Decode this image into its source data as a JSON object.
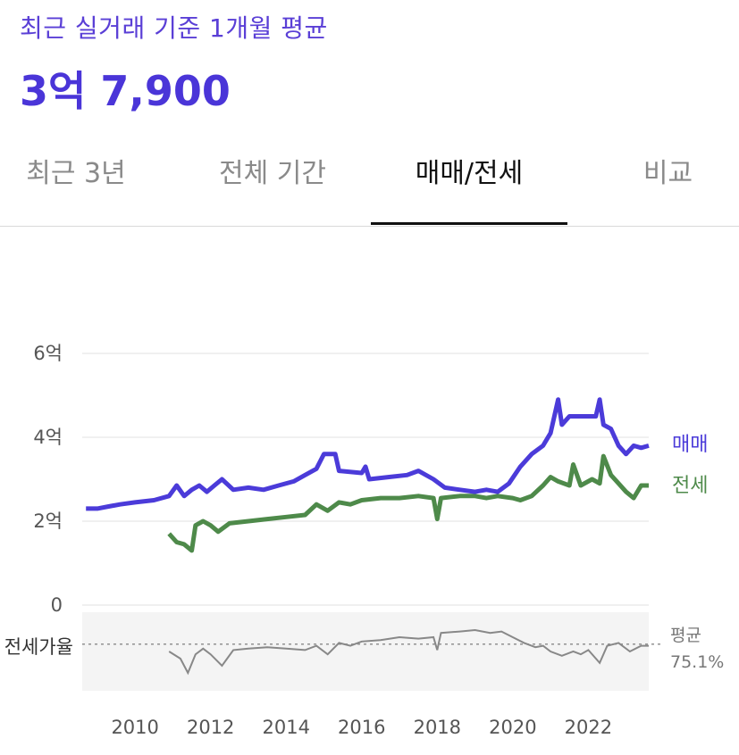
{
  "header": {
    "subtitle": "최근 실거래 기준 1개월 평균",
    "price": "3억 7,900"
  },
  "tabs": [
    {
      "label": "최근 3년",
      "active": false
    },
    {
      "label": "전체 기간",
      "active": false
    },
    {
      "label": "매매/전세",
      "active": true
    },
    {
      "label": "비교",
      "active": false
    }
  ],
  "colors": {
    "sale": "#4b3bd9",
    "jeonse": "#4e8a4a",
    "ratio": "#888888"
  },
  "chart_data": {
    "type": "line",
    "y_unit_label": "억",
    "ylim": [
      0,
      6
    ],
    "y_ticks": [
      {
        "value": 0,
        "label": "0"
      },
      {
        "value": 2,
        "label": "2억"
      },
      {
        "value": 4,
        "label": "4억"
      },
      {
        "value": 6,
        "label": "6억"
      }
    ],
    "x_ticks": [
      "2010",
      "2012",
      "2014",
      "2016",
      "2018",
      "2020",
      "2022"
    ],
    "xlim": [
      2008.6,
      2023.6
    ],
    "series": [
      {
        "name": "매매",
        "points": [
          [
            2008.7,
            2.3
          ],
          [
            2009.0,
            2.3
          ],
          [
            2009.3,
            2.35
          ],
          [
            2009.6,
            2.4
          ],
          [
            2010.0,
            2.45
          ],
          [
            2010.5,
            2.5
          ],
          [
            2010.9,
            2.6
          ],
          [
            2011.1,
            2.85
          ],
          [
            2011.3,
            2.6
          ],
          [
            2011.5,
            2.75
          ],
          [
            2011.7,
            2.85
          ],
          [
            2011.9,
            2.7
          ],
          [
            2012.1,
            2.85
          ],
          [
            2012.3,
            3.0
          ],
          [
            2012.6,
            2.75
          ],
          [
            2013.0,
            2.8
          ],
          [
            2013.4,
            2.75
          ],
          [
            2013.8,
            2.85
          ],
          [
            2014.2,
            2.95
          ],
          [
            2014.5,
            3.1
          ],
          [
            2014.8,
            3.25
          ],
          [
            2015.0,
            3.6
          ],
          [
            2015.3,
            3.6
          ],
          [
            2015.4,
            3.2
          ],
          [
            2016.0,
            3.15
          ],
          [
            2016.1,
            3.3
          ],
          [
            2016.2,
            3.0
          ],
          [
            2016.7,
            3.05
          ],
          [
            2017.2,
            3.1
          ],
          [
            2017.5,
            3.2
          ],
          [
            2017.9,
            3.0
          ],
          [
            2018.2,
            2.8
          ],
          [
            2018.6,
            2.75
          ],
          [
            2019.0,
            2.7
          ],
          [
            2019.3,
            2.75
          ],
          [
            2019.6,
            2.7
          ],
          [
            2019.9,
            2.9
          ],
          [
            2020.2,
            3.3
          ],
          [
            2020.5,
            3.6
          ],
          [
            2020.8,
            3.8
          ],
          [
            2021.0,
            4.1
          ],
          [
            2021.2,
            4.9
          ],
          [
            2021.3,
            4.3
          ],
          [
            2021.5,
            4.5
          ],
          [
            2021.8,
            4.5
          ],
          [
            2022.2,
            4.5
          ],
          [
            2022.3,
            4.9
          ],
          [
            2022.4,
            4.3
          ],
          [
            2022.6,
            4.2
          ],
          [
            2022.8,
            3.8
          ],
          [
            2023.0,
            3.6
          ],
          [
            2023.2,
            3.8
          ],
          [
            2023.4,
            3.75
          ],
          [
            2023.6,
            3.8
          ]
        ]
      },
      {
        "name": "전세",
        "points": [
          [
            2010.9,
            1.7
          ],
          [
            2011.1,
            1.5
          ],
          [
            2011.3,
            1.45
          ],
          [
            2011.5,
            1.3
          ],
          [
            2011.6,
            1.9
          ],
          [
            2011.8,
            2.0
          ],
          [
            2012.0,
            1.9
          ],
          [
            2012.2,
            1.75
          ],
          [
            2012.5,
            1.95
          ],
          [
            2013.0,
            2.0
          ],
          [
            2013.5,
            2.05
          ],
          [
            2014.0,
            2.1
          ],
          [
            2014.5,
            2.15
          ],
          [
            2014.8,
            2.4
          ],
          [
            2015.1,
            2.25
          ],
          [
            2015.4,
            2.45
          ],
          [
            2015.7,
            2.4
          ],
          [
            2016.0,
            2.5
          ],
          [
            2016.5,
            2.55
          ],
          [
            2017.0,
            2.55
          ],
          [
            2017.5,
            2.6
          ],
          [
            2017.9,
            2.55
          ],
          [
            2018.0,
            2.05
          ],
          [
            2018.1,
            2.55
          ],
          [
            2018.6,
            2.6
          ],
          [
            2019.0,
            2.6
          ],
          [
            2019.3,
            2.55
          ],
          [
            2019.6,
            2.6
          ],
          [
            2020.0,
            2.55
          ],
          [
            2020.2,
            2.5
          ],
          [
            2020.5,
            2.6
          ],
          [
            2020.8,
            2.85
          ],
          [
            2021.0,
            3.05
          ],
          [
            2021.2,
            2.95
          ],
          [
            2021.5,
            2.85
          ],
          [
            2021.6,
            3.35
          ],
          [
            2021.8,
            2.85
          ],
          [
            2022.1,
            3.0
          ],
          [
            2022.3,
            2.9
          ],
          [
            2022.4,
            3.55
          ],
          [
            2022.6,
            3.1
          ],
          [
            2022.8,
            2.9
          ],
          [
            2023.0,
            2.7
          ],
          [
            2023.2,
            2.55
          ],
          [
            2023.4,
            2.85
          ],
          [
            2023.6,
            2.85
          ]
        ]
      },
      {
        "name": "전세가율",
        "points": [
          [
            2010.9,
            0.7
          ],
          [
            2011.2,
            0.65
          ],
          [
            2011.4,
            0.55
          ],
          [
            2011.6,
            0.68
          ],
          [
            2011.8,
            0.72
          ],
          [
            2012.0,
            0.68
          ],
          [
            2012.3,
            0.6
          ],
          [
            2012.6,
            0.71
          ],
          [
            2013.0,
            0.72
          ],
          [
            2013.5,
            0.73
          ],
          [
            2014.0,
            0.72
          ],
          [
            2014.5,
            0.71
          ],
          [
            2014.8,
            0.74
          ],
          [
            2015.1,
            0.68
          ],
          [
            2015.4,
            0.76
          ],
          [
            2015.7,
            0.74
          ],
          [
            2016.0,
            0.77
          ],
          [
            2016.5,
            0.78
          ],
          [
            2017.0,
            0.8
          ],
          [
            2017.5,
            0.79
          ],
          [
            2017.9,
            0.8
          ],
          [
            2018.0,
            0.71
          ],
          [
            2018.1,
            0.83
          ],
          [
            2018.6,
            0.84
          ],
          [
            2019.0,
            0.85
          ],
          [
            2019.4,
            0.83
          ],
          [
            2019.7,
            0.84
          ],
          [
            2020.0,
            0.8
          ],
          [
            2020.3,
            0.76
          ],
          [
            2020.6,
            0.73
          ],
          [
            2020.8,
            0.74
          ],
          [
            2021.0,
            0.7
          ],
          [
            2021.3,
            0.67
          ],
          [
            2021.6,
            0.7
          ],
          [
            2021.8,
            0.68
          ],
          [
            2022.0,
            0.71
          ],
          [
            2022.3,
            0.62
          ],
          [
            2022.5,
            0.74
          ],
          [
            2022.8,
            0.76
          ],
          [
            2023.1,
            0.7
          ],
          [
            2023.4,
            0.74
          ],
          [
            2023.6,
            0.74
          ]
        ]
      }
    ],
    "ratio_panel": {
      "label": "전세가율",
      "avg_label": "평균",
      "avg_value": "75.1%",
      "avg": 0.751
    }
  }
}
